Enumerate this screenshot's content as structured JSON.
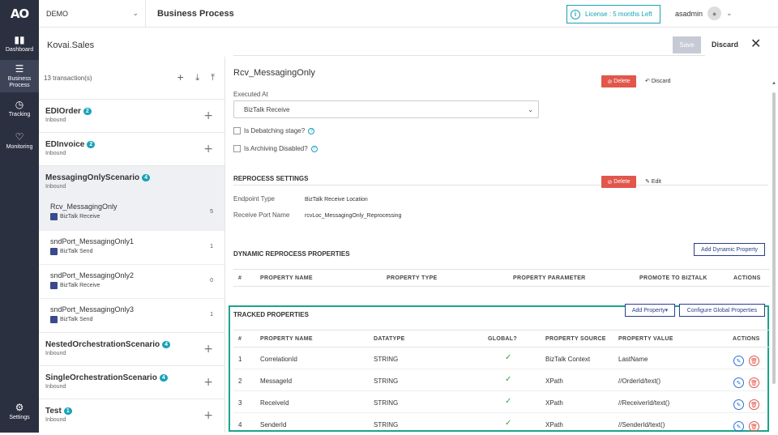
{
  "nav": {
    "logo": "AO",
    "items": [
      {
        "label": "Dashboard",
        "icon": "bar-chart-icon"
      },
      {
        "label": "Business Process",
        "icon": "list-icon"
      },
      {
        "label": "Tracking",
        "icon": "clock-icon"
      },
      {
        "label": "Monitoring",
        "icon": "heart-icon"
      }
    ],
    "settings": "Settings"
  },
  "topbar": {
    "env": "DEMO",
    "title": "Business Process",
    "license": "License : 5 months Left",
    "user": "asadmin"
  },
  "subhead": {
    "app": "Kovai.Sales",
    "save": "Save",
    "discard": "Discard"
  },
  "left": {
    "count": "13 transaction(s)",
    "groups": [
      {
        "name": "EDIOrder",
        "badge": "2",
        "sub": "Inbound"
      },
      {
        "name": "EDInvoice",
        "badge": "2",
        "sub": "Inbound"
      },
      {
        "name": "MessagingOnlyScenario",
        "badge": "4",
        "sub": "Inbound"
      },
      {
        "name": "NestedOrchestrationScenario",
        "badge": "4",
        "sub": "Inbound"
      },
      {
        "name": "SingleOrchestrationScenario",
        "badge": "4",
        "sub": "Inbound"
      },
      {
        "name": "Test",
        "badge": "1",
        "sub": "Inbound"
      }
    ],
    "items": [
      {
        "name": "Rcv_MessagingOnly",
        "sub": "BizTalk Receive",
        "count": "5"
      },
      {
        "name": "sndPort_MessagingOnly1",
        "sub": "BizTalk Send",
        "count": "1"
      },
      {
        "name": "sndPort_MessagingOnly2",
        "sub": "BizTalk Receive",
        "count": "0"
      },
      {
        "name": "sndPort_MessagingOnly3",
        "sub": "BizTalk Send",
        "count": "1"
      }
    ]
  },
  "main": {
    "name": "Rcv_MessagingOnly",
    "delete": "Delete",
    "discard": "Discard",
    "executed_at_label": "Executed At",
    "executed_at_value": "BizTalk Receive",
    "debatching": "Is Debatching stage?",
    "archiving": "Is Archiving Disabled?",
    "reprocess_title": "REPROCESS SETTINGS",
    "edit": "Edit",
    "endpoint_label": "Endpoint Type",
    "endpoint_value": "BizTalk Receive Location",
    "port_label": "Receive Port Name",
    "port_value": "rcvLoc_MessagingOnly_Reprocessing",
    "dynamic_title": "DYNAMIC REPROCESS PROPERTIES",
    "add_dynamic": "Add Dynamic Property",
    "dyn_headers": [
      "#",
      "PROPERTY NAME",
      "PROPERTY TYPE",
      "PROPERTY PARAMETER",
      "PROMOTE TO BIZTALK",
      "ACTIONS"
    ],
    "tracked_title": "TRACKED PROPERTIES",
    "add_property": "Add Property",
    "configure_global": "Configure Global Properties",
    "tracked_headers": [
      "#",
      "PROPERTY NAME",
      "DATATYPE",
      "GLOBAL?",
      "PROPERTY SOURCE",
      "PROPERTY VALUE",
      "ACTIONS"
    ],
    "tracked_rows": [
      {
        "n": "1",
        "name": "CorrelationId",
        "type": "STRING",
        "source": "BizTalk Context",
        "value": "LastName"
      },
      {
        "n": "2",
        "name": "MessageId",
        "type": "STRING",
        "source": "XPath",
        "value": "//OrderId/text()"
      },
      {
        "n": "3",
        "name": "ReceiveId",
        "type": "STRING",
        "source": "XPath",
        "value": "//ReceiverId/text()"
      },
      {
        "n": "4",
        "name": "SenderId",
        "type": "STRING",
        "source": "XPath",
        "value": "//SenderId/text()"
      }
    ]
  }
}
